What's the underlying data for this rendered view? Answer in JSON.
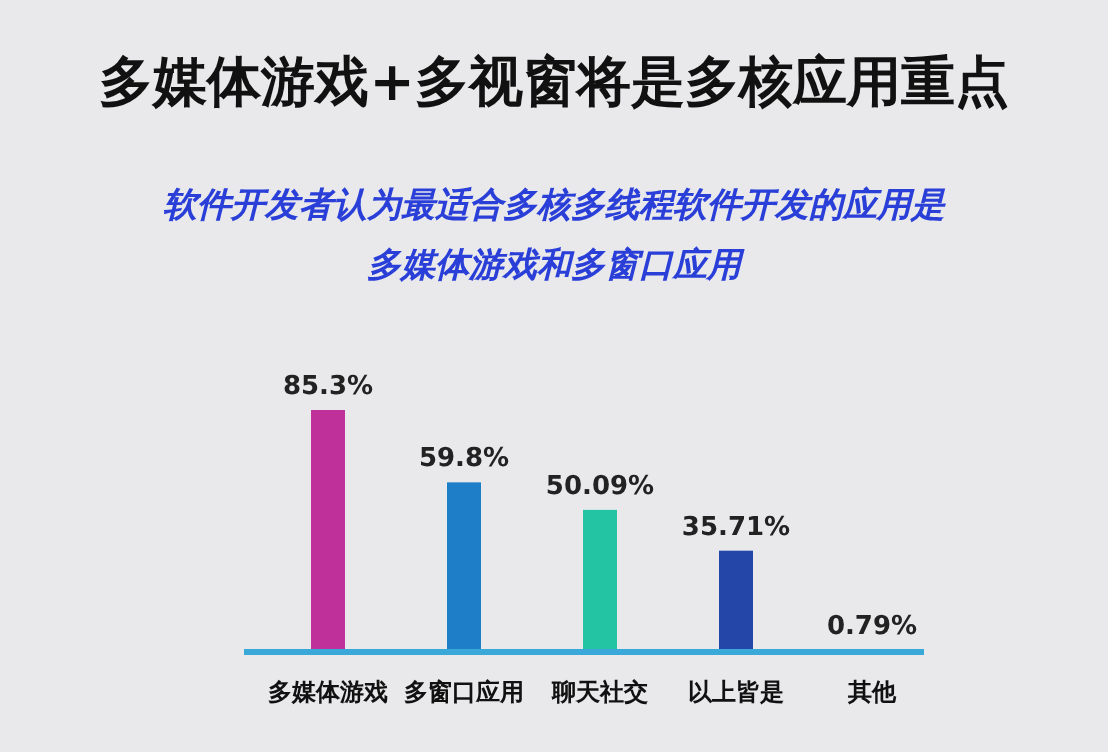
{
  "chart_data": {
    "type": "bar",
    "title": "多媒体游戏+多视窗将是多核应用重点",
    "subtitle": "软件开发者认为最适合多核多线程软件开发的应用是多媒体游戏和多窗口应用",
    "categories": [
      "多媒体游戏",
      "多窗口应用",
      "聊天社交",
      "以上皆是",
      "其他"
    ],
    "values": [
      85.3,
      59.8,
      50.09,
      35.71,
      0.79
    ],
    "value_labels": [
      "85.3%",
      "59.8%",
      "50.09%",
      "35.71%",
      "0.79%"
    ],
    "colors": [
      "#c0309a",
      "#1e7fc8",
      "#22c4a4",
      "#2446a8",
      "#6a3aa0"
    ]
  }
}
